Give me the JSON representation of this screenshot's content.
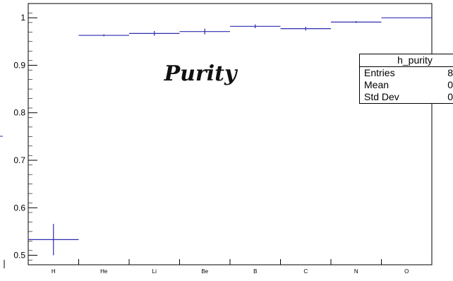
{
  "chart_data": {
    "type": "histogram",
    "title": "Purity",
    "categories": [
      "H",
      "He",
      "Li",
      "Be",
      "B",
      "C",
      "N",
      "O"
    ],
    "values": [
      0.533,
      0.963,
      0.967,
      0.971,
      0.982,
      0.977,
      0.991,
      1.0
    ],
    "errors": [
      0.033,
      0.002,
      0.005,
      0.006,
      0.004,
      0.004,
      0.002,
      0.0
    ],
    "ylim": [
      0.48,
      1.03
    ],
    "yticks": [
      0.5,
      0.6,
      0.7,
      0.8,
      0.9,
      1
    ],
    "line_color": "#2b2bb0",
    "grid": false,
    "legend": "none"
  },
  "stats_box": {
    "name": "h_purity",
    "rows": [
      {
        "label": "Entries",
        "value": "8"
      },
      {
        "label": "Mean",
        "value": "0"
      },
      {
        "label": "Std Dev",
        "value": "0"
      }
    ]
  }
}
